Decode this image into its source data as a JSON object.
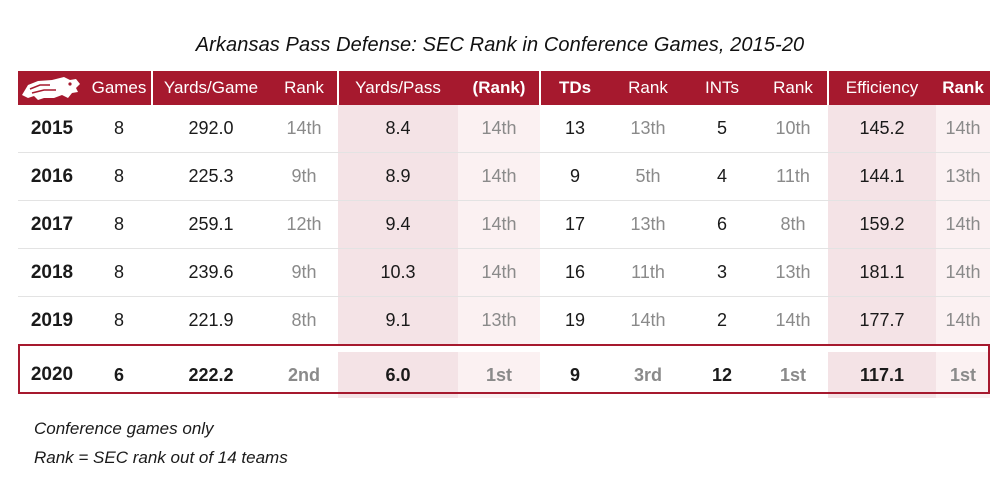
{
  "title": "Arkansas Pass Defense: SEC Rank in Conference Games, 2015-20",
  "columns": [
    "Games",
    "Yards/Game",
    "Rank",
    "Yards/Pass",
    "(Rank)",
    "TDs",
    "Rank",
    "INTs",
    "Rank",
    "Efficiency",
    "Rank"
  ],
  "logo": "razorback-logo",
  "colors": {
    "header_bg": "#a6192e",
    "highlight_border": "#a6192e",
    "shade_dark": "#f4e3e6",
    "shade_light": "#fbf1f2",
    "rank_text": "#8a8a8a"
  },
  "chart_data": {
    "type": "table",
    "title": "Arkansas Pass Defense: SEC Rank in Conference Games, 2015-20",
    "columns": [
      "",
      "Games",
      "Yards/Game",
      "Rank",
      "Yards/Pass",
      "(Rank)",
      "TDs",
      "Rank",
      "INTs",
      "Rank",
      "Efficiency",
      "Rank"
    ],
    "rows": [
      [
        "2015",
        "8",
        "292.0",
        "14th",
        "8.4",
        "14th",
        "13",
        "13th",
        "5",
        "10th",
        "145.2",
        "14th"
      ],
      [
        "2016",
        "8",
        "225.3",
        "9th",
        "8.9",
        "14th",
        "9",
        "5th",
        "4",
        "11th",
        "144.1",
        "13th"
      ],
      [
        "2017",
        "8",
        "259.1",
        "12th",
        "9.4",
        "14th",
        "17",
        "13th",
        "6",
        "8th",
        "159.2",
        "14th"
      ],
      [
        "2018",
        "8",
        "239.6",
        "9th",
        "10.3",
        "14th",
        "16",
        "11th",
        "3",
        "13th",
        "181.1",
        "14th"
      ],
      [
        "2019",
        "8",
        "221.9",
        "8th",
        "9.1",
        "13th",
        "19",
        "14th",
        "2",
        "14th",
        "177.7",
        "14th"
      ],
      [
        "2020",
        "6",
        "222.2",
        "2nd",
        "6.0",
        "1st",
        "9",
        "3rd",
        "12",
        "1st",
        "117.1",
        "1st"
      ]
    ],
    "highlighted_row": "2020"
  },
  "notes": [
    "Conference games only",
    "Rank = SEC rank out of 14 teams"
  ]
}
